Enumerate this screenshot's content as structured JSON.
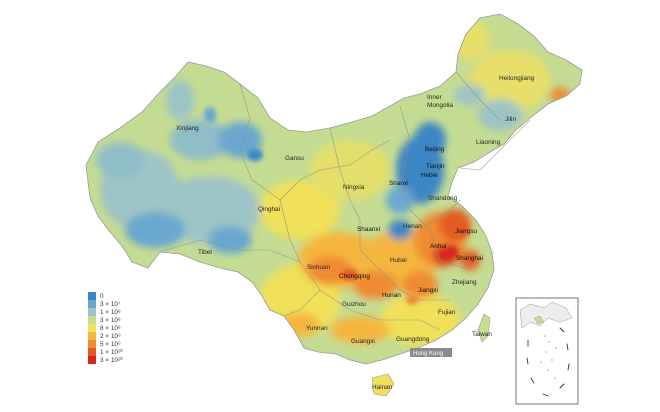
{
  "legend": {
    "items": [
      {
        "label": "0",
        "color": "#3d86c6"
      },
      {
        "label": "3 × 10⁷",
        "color": "#6aa7cf"
      },
      {
        "label": "1 × 10⁸",
        "color": "#9dc4c6"
      },
      {
        "label": "3 × 10⁸",
        "color": "#c9dd8e"
      },
      {
        "label": "8 × 10⁸",
        "color": "#f0e05a"
      },
      {
        "label": "2 × 10⁹",
        "color": "#f5b640"
      },
      {
        "label": "5 × 10⁹",
        "color": "#ef8b30"
      },
      {
        "label": "1 × 10¹⁰",
        "color": "#e45a22"
      },
      {
        "label": "3 × 10¹⁰",
        "color": "#d7261c"
      }
    ]
  },
  "regions": {
    "xinjiang": "Xinjiang",
    "tibet": "Tibet",
    "qinghai": "Qinghai",
    "gansu": "Gansu",
    "sichuan": "Sichuan",
    "yunnan": "Yunnan",
    "guizhou": "Guizhou",
    "chongqing": "Chongqing",
    "guangxi": "Guangxi",
    "guangdong": "Guangdong",
    "hainan": "Hainan",
    "hunan": "Hunan",
    "jiangxi": "Jiangxi",
    "fujian": "Fujian",
    "zhejiang": "Zhejiang",
    "shanghai": "Shanghai",
    "jiangsu": "Jiangsu",
    "anhui": "Anhui",
    "hubei": "Hubei",
    "henan": "Henan",
    "shandong": "Shandong",
    "hebei": "Hebei",
    "beijing": "Beijing",
    "tianjin": "Tianjin",
    "shanxi": "Shanxi",
    "shaanxi": "Shaanxi",
    "ningxia": "Ningxia",
    "inner_mongolia": "Inner Mongolia",
    "liaoning": "Liaoning",
    "jilin": "Jilin",
    "heilongjiang": "Heilongjiang",
    "taiwan": "Taiwan",
    "hong_kong": "Hong Kong"
  },
  "colors": {
    "background": "#ffffff",
    "border": "#8a8a8a",
    "ocean_inset_border": "#555555"
  }
}
